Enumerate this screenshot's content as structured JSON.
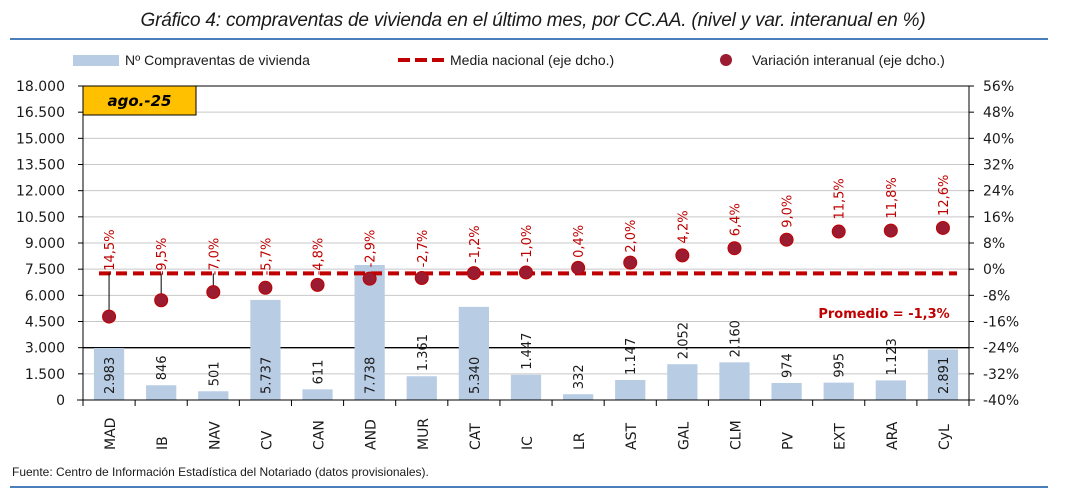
{
  "title": "Gráfico 4: compraventas de vivienda en el último mes, por CC.AA. (nivel y var. interanual en %)",
  "source": "Fuente: Centro de Información Estadística del Notariado (datos provisionales).",
  "colors": {
    "bars": "#b8cce4",
    "points": "#9b1b30",
    "average_line": "#c00000",
    "labels": "#c00000",
    "period_badge": "#ffc000",
    "rule": "#4a7ebb"
  },
  "chart_data": {
    "type": "bar",
    "title": "Gráfico 4: compraventas de vivienda en el último mes, por CC.AA. (nivel y var. interanual en %)",
    "period_badge": "ago.-25",
    "categories": [
      "MAD",
      "IB",
      "NAV",
      "CV",
      "CAN",
      "AND",
      "MUR",
      "CAT",
      "IC",
      "LR",
      "AST",
      "GAL",
      "CLM",
      "PV",
      "EXT",
      "ARA",
      "CyL"
    ],
    "legend": {
      "placement": "top",
      "entries": [
        "Nº Compraventas de vivienda",
        "Media nacional (eje dcho.)",
        "Variación interanual (eje dcho.)"
      ]
    },
    "series": [
      {
        "name": "Nº Compraventas de vivienda",
        "type": "bar",
        "axis": "left",
        "values": [
          2983,
          846,
          501,
          5737,
          611,
          7738,
          1361,
          5340,
          1447,
          332,
          1147,
          2052,
          2160,
          974,
          995,
          1123,
          2891
        ],
        "labels": [
          "2.983",
          "846",
          "501",
          "5.737",
          "611",
          "7.738",
          "1.361",
          "5.340",
          "1.447",
          "332",
          "1.147",
          "2.052",
          "2.160",
          "974",
          "995",
          "1.123",
          "2.891"
        ]
      },
      {
        "name": "Variación interanual (eje dcho.)",
        "type": "scatter",
        "axis": "right",
        "values": [
          -14.5,
          -9.5,
          -7.0,
          -5.7,
          -4.8,
          -2.9,
          -2.7,
          -1.2,
          -1.0,
          0.4,
          2.0,
          4.2,
          6.4,
          9.0,
          11.5,
          11.8,
          12.6
        ],
        "labels": [
          "-14,5%",
          "-9,5%",
          "-7,0%",
          "-5,7%",
          "-4,8%",
          "-2,9%",
          "-2,7%",
          "-1,2%",
          "-1,0%",
          "0,4%",
          "2,0%",
          "4,2%",
          "6,4%",
          "9,0%",
          "11,5%",
          "11,8%",
          "12,6%"
        ]
      },
      {
        "name": "Media nacional (eje dcho.)",
        "type": "line",
        "axis": "right",
        "value": -1.3,
        "annotation": "Promedio = -1,3%"
      }
    ],
    "left_axis": {
      "ylim": [
        0,
        18000
      ],
      "ticks": [
        "0",
        "1.500",
        "3.000",
        "4.500",
        "6.000",
        "7.500",
        "9.000",
        "10.500",
        "12.000",
        "13.500",
        "15.000",
        "16.500",
        "18.000"
      ]
    },
    "right_axis": {
      "ylim": [
        -40,
        56
      ],
      "ticks": [
        "-40%",
        "-32%",
        "-24%",
        "-16%",
        "-8%",
        "0%",
        "8%",
        "16%",
        "24%",
        "32%",
        "40%",
        "48%",
        "56%"
      ]
    },
    "grid": true
  }
}
